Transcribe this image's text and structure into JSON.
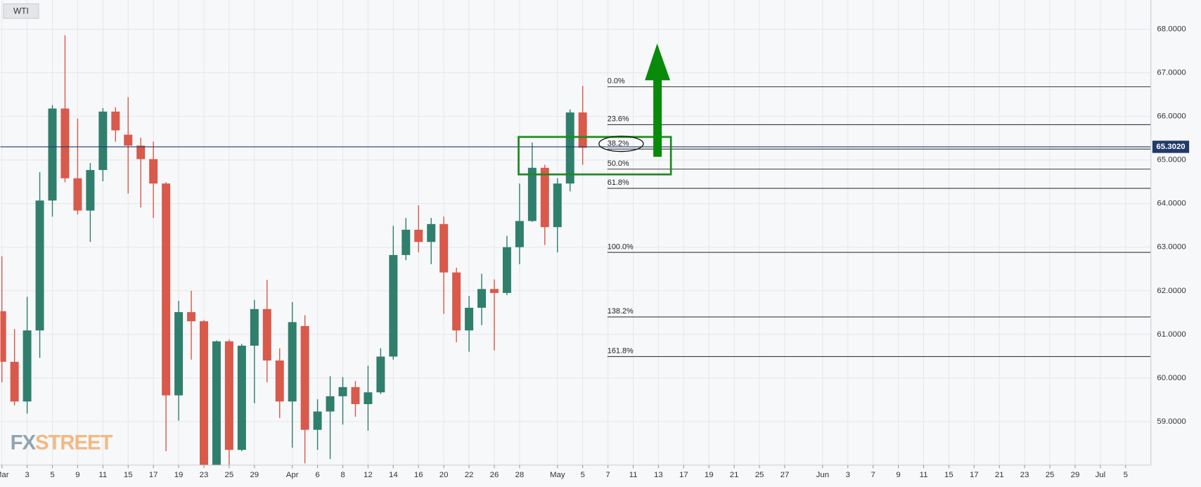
{
  "chart_data": {
    "type": "candlestick",
    "title": "WTI",
    "watermark": [
      "FX",
      "STREET"
    ],
    "up_color": "#2f7f6c",
    "down_color": "#d9594b",
    "grid": true,
    "open": [
      61.53,
      60.37,
      59.46,
      61.09,
      64.07,
      66.18,
      64.58,
      63.84,
      64.77,
      66.11,
      65.58,
      65.33,
      65.02,
      64.46,
      59.6,
      61.51,
      61.3,
      57.95,
      60.84,
      58.35,
      60.74,
      61.58,
      60.4,
      59.46,
      61.19,
      58.81,
      59.23,
      59.58,
      59.79,
      59.4,
      59.67,
      60.49,
      62.82,
      63.4,
      63.12,
      63.53,
      62.42,
      61.09,
      61.61,
      62.04,
      61.95,
      63.0,
      63.6,
      64.82,
      63.46,
      64.46,
      66.09
    ],
    "high": [
      62.79,
      61.12,
      61.86,
      64.72,
      66.26,
      67.86,
      65.95,
      64.93,
      66.19,
      66.21,
      66.44,
      65.51,
      65.42,
      64.49,
      61.77,
      62.0,
      61.33,
      60.86,
      60.88,
      60.78,
      61.79,
      62.25,
      60.68,
      61.74,
      61.44,
      59.51,
      60.04,
      60.02,
      59.93,
      60.28,
      60.68,
      63.49,
      63.67,
      63.96,
      63.67,
      63.7,
      62.53,
      61.88,
      62.39,
      62.26,
      63.26,
      64.46,
      65.4,
      64.89,
      64.58,
      66.16,
      66.7
    ],
    "low": [
      59.9,
      59.37,
      59.18,
      60.46,
      63.7,
      64.49,
      63.75,
      63.12,
      64.51,
      65.42,
      64.23,
      63.91,
      63.67,
      58.32,
      59.02,
      60.42,
      57.85,
      57.85,
      58.0,
      58.32,
      59.42,
      59.9,
      59.08,
      58.4,
      58.04,
      58.35,
      58.14,
      58.93,
      59.11,
      58.79,
      59.63,
      60.42,
      62.7,
      62.88,
      62.61,
      61.47,
      60.82,
      60.6,
      61.21,
      60.63,
      61.9,
      62.61,
      63.58,
      63.05,
      62.88,
      64.28,
      64.89
    ],
    "close": [
      60.37,
      59.46,
      61.09,
      64.07,
      66.18,
      64.58,
      63.84,
      64.77,
      66.11,
      65.68,
      65.33,
      65.02,
      64.46,
      59.6,
      61.51,
      61.3,
      58.0,
      60.84,
      58.35,
      60.74,
      61.58,
      60.4,
      59.46,
      61.28,
      58.81,
      59.23,
      59.58,
      59.79,
      59.4,
      59.67,
      60.49,
      62.82,
      63.4,
      63.12,
      63.53,
      62.42,
      61.09,
      61.61,
      62.04,
      61.95,
      63.0,
      63.6,
      64.82,
      63.46,
      64.46,
      66.09,
      65.28
    ],
    "xlim": [
      -0.12,
      91
    ],
    "xticks": [
      {
        "value": 0,
        "label": "Mar"
      },
      {
        "value": 2,
        "label": "3"
      },
      {
        "value": 4,
        "label": "5"
      },
      {
        "value": 6,
        "label": "9"
      },
      {
        "value": 8,
        "label": "11"
      },
      {
        "value": 10,
        "label": "15"
      },
      {
        "value": 12,
        "label": "17"
      },
      {
        "value": 14,
        "label": "19"
      },
      {
        "value": 16,
        "label": "23"
      },
      {
        "value": 18,
        "label": "25"
      },
      {
        "value": 20,
        "label": "29"
      },
      {
        "value": 23,
        "label": "Apr"
      },
      {
        "value": 25,
        "label": "6"
      },
      {
        "value": 27,
        "label": "8"
      },
      {
        "value": 29,
        "label": "12"
      },
      {
        "value": 31,
        "label": "14"
      },
      {
        "value": 33,
        "label": "16"
      },
      {
        "value": 35,
        "label": "20"
      },
      {
        "value": 37,
        "label": "22"
      },
      {
        "value": 39,
        "label": "26"
      },
      {
        "value": 41,
        "label": "28"
      },
      {
        "value": 44,
        "label": "May"
      },
      {
        "value": 46,
        "label": "5"
      },
      {
        "value": 48,
        "label": "7"
      },
      {
        "value": 50,
        "label": "11"
      },
      {
        "value": 52,
        "label": "13"
      },
      {
        "value": 54,
        "label": "17"
      },
      {
        "value": 56,
        "label": "19"
      },
      {
        "value": 58,
        "label": "21"
      },
      {
        "value": 60,
        "label": "25"
      },
      {
        "value": 62,
        "label": "27"
      },
      {
        "value": 65,
        "label": "Jun"
      },
      {
        "value": 67,
        "label": "3"
      },
      {
        "value": 69,
        "label": "7"
      },
      {
        "value": 71,
        "label": "9"
      },
      {
        "value": 73,
        "label": "11"
      },
      {
        "value": 75,
        "label": "15"
      },
      {
        "value": 77,
        "label": "17"
      },
      {
        "value": 79,
        "label": "21"
      },
      {
        "value": 81,
        "label": "23"
      },
      {
        "value": 83,
        "label": "25"
      },
      {
        "value": 85,
        "label": "29"
      },
      {
        "value": 87,
        "label": "Jul"
      },
      {
        "value": 89,
        "label": "5"
      }
    ],
    "ylim": [
      58.0,
      68.67
    ],
    "yticks": [
      {
        "value": 59,
        "label": "59.0000"
      },
      {
        "value": 60,
        "label": "60.0000"
      },
      {
        "value": 61,
        "label": "61.0000"
      },
      {
        "value": 62,
        "label": "62.0000"
      },
      {
        "value": 63,
        "label": "63.0000"
      },
      {
        "value": 64,
        "label": "64.0000"
      },
      {
        "value": 65,
        "label": "65.0000"
      },
      {
        "value": 66,
        "label": "66.0000"
      },
      {
        "value": 67,
        "label": "67.0000"
      },
      {
        "value": 68,
        "label": "68.0000"
      }
    ],
    "last_price": {
      "value": 65.302,
      "label": "65.3020",
      "color": "#1f3a6b"
    },
    "fib_levels": [
      {
        "label": "0.0%",
        "value": 66.68
      },
      {
        "label": "23.6%",
        "value": 65.81
      },
      {
        "label": "38.2%",
        "value": 65.25
      },
      {
        "label": "50.0%",
        "value": 64.79
      },
      {
        "label": "61.8%",
        "value": 64.35
      },
      {
        "label": "100.0%",
        "value": 62.88
      },
      {
        "label": "138.2%",
        "value": 61.4
      },
      {
        "label": "161.8%",
        "value": 60.49
      }
    ]
  }
}
